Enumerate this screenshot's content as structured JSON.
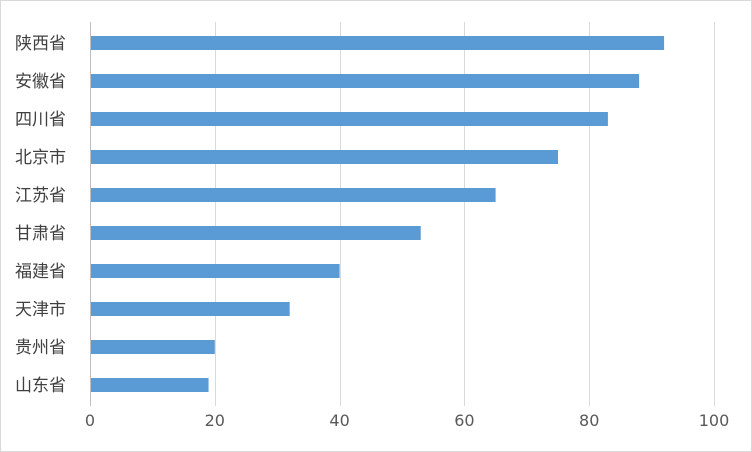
{
  "chart_data": {
    "type": "bar",
    "orientation": "horizontal",
    "categories": [
      "陕西省",
      "安徽省",
      "四川省",
      "北京市",
      "江苏省",
      "甘肃省",
      "福建省",
      "天津市",
      "贵州省",
      "山东省"
    ],
    "values": [
      92,
      88,
      83,
      75,
      65,
      53,
      40,
      32,
      20,
      19
    ],
    "xlim": [
      0,
      100
    ],
    "x_ticks": [
      "0",
      "20",
      "40",
      "60",
      "80",
      "100"
    ],
    "grid": "vertical",
    "legend": "none",
    "bar_color": "#5b9bd5"
  }
}
